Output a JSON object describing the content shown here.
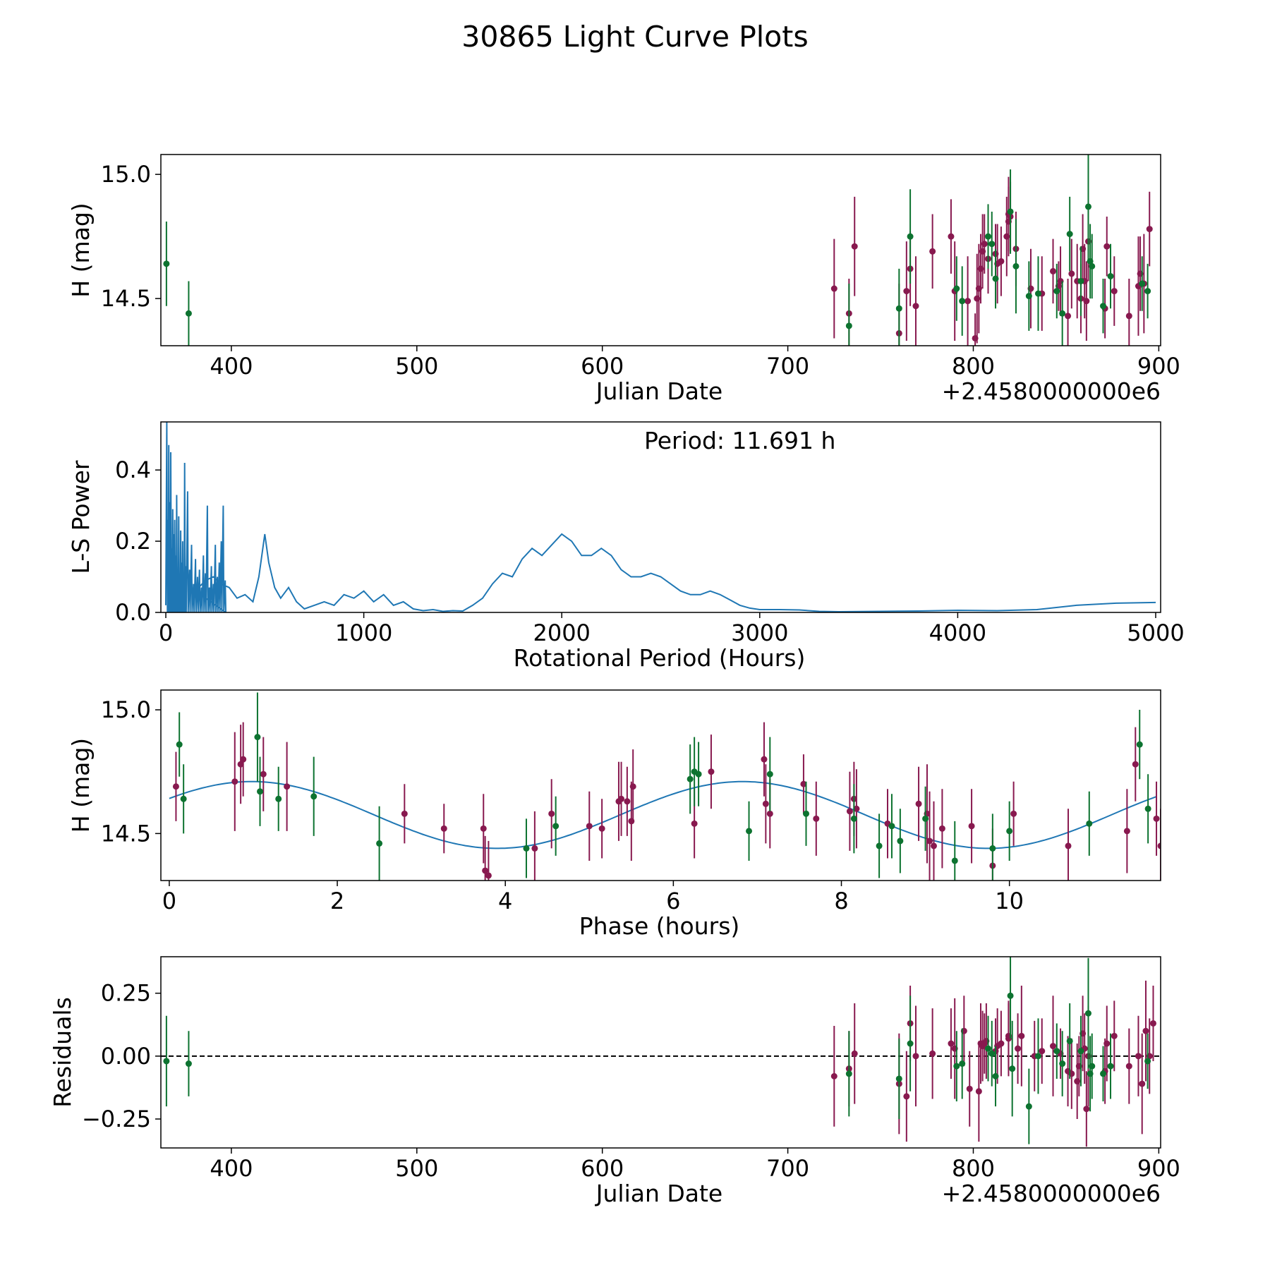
{
  "figure_title": "30865 Light Curve Plots",
  "colors": {
    "filter_a": "#88194F",
    "filter_b": "#0D7330",
    "model": "#1F77B4",
    "zero_line": "#000000"
  },
  "chart_data": [
    {
      "id": "lightcurve",
      "type": "scatter",
      "xlabel": "Julian Date",
      "ylabel": "H (mag)",
      "x_offset_label": "+2.4580000000e6",
      "xlim": [
        362,
        901
      ],
      "ylim": [
        14.31,
        15.08
      ],
      "xticks": [
        400,
        500,
        600,
        700,
        800,
        900
      ],
      "xtick_labels": [
        "400",
        "500",
        "600",
        "700",
        "800",
        "900"
      ],
      "yticks": [
        14.5,
        15.0
      ],
      "ytick_labels": [
        "14.5",
        "15.0"
      ],
      "series": [
        {
          "name": "filter_a",
          "color": "#88194F",
          "x": [
            725,
            733,
            736,
            760,
            764,
            766,
            769,
            778,
            788,
            790,
            797,
            801,
            802,
            803,
            804,
            805,
            806,
            808,
            812,
            813,
            815,
            818,
            819,
            819,
            820,
            823,
            831,
            837,
            843,
            846,
            847,
            851,
            853,
            856,
            858,
            859,
            860,
            861,
            862,
            871,
            872,
            876,
            884,
            889,
            890,
            892,
            895
          ],
          "y": [
            14.54,
            14.44,
            14.71,
            14.36,
            14.53,
            14.62,
            14.47,
            14.69,
            14.75,
            14.53,
            14.49,
            14.34,
            14.5,
            14.54,
            14.62,
            14.69,
            14.72,
            14.66,
            14.68,
            14.64,
            14.65,
            14.75,
            14.81,
            14.84,
            14.83,
            14.7,
            14.54,
            14.52,
            14.61,
            14.55,
            14.57,
            14.43,
            14.6,
            14.57,
            14.5,
            14.7,
            14.57,
            14.49,
            14.73,
            14.46,
            14.71,
            14.53,
            14.43,
            14.55,
            14.6,
            14.56,
            14.78
          ],
          "err": [
            0.2,
            0.14,
            0.2,
            0.2,
            0.2,
            0.15,
            0.2,
            0.15,
            0.15,
            0.2,
            0.18,
            0.1,
            0.18,
            0.18,
            0.14,
            0.15,
            0.12,
            0.14,
            0.12,
            0.16,
            0.14,
            0.16,
            0.14,
            0.15,
            0.14,
            0.15,
            0.16,
            0.15,
            0.13,
            0.1,
            0.14,
            0.15,
            0.14,
            0.15,
            0.14,
            0.14,
            0.15,
            0.16,
            0.16,
            0.12,
            0.12,
            0.14,
            0.15,
            0.2,
            0.15,
            0.2,
            0.15
          ]
        },
        {
          "name": "filter_b",
          "color": "#0D7330",
          "x": [
            365,
            377,
            733,
            760,
            766,
            791,
            794,
            808,
            810,
            812,
            820,
            823,
            830,
            835,
            845,
            848,
            852,
            858,
            862,
            863,
            864,
            870,
            874,
            891,
            894
          ],
          "y": [
            14.64,
            14.44,
            14.39,
            14.46,
            14.75,
            14.54,
            14.49,
            14.75,
            14.72,
            14.58,
            14.85,
            14.63,
            14.51,
            14.52,
            14.53,
            14.44,
            14.76,
            14.57,
            14.87,
            14.65,
            14.63,
            14.47,
            14.59,
            14.56,
            14.53
          ],
          "err": [
            0.17,
            0.13,
            0.17,
            0.16,
            0.19,
            0.13,
            0.14,
            0.13,
            0.13,
            0.12,
            0.17,
            0.19,
            0.14,
            0.15,
            0.11,
            0.13,
            0.15,
            0.14,
            0.22,
            0.15,
            0.13,
            0.11,
            0.13,
            0.11,
            0.11
          ]
        }
      ]
    },
    {
      "id": "periodogram",
      "type": "line",
      "xlabel": "Rotational Period (Hours)",
      "ylabel": "L-S Power",
      "annotation": "Period: 11.691 h",
      "xlim": [
        -25,
        5025
      ],
      "ylim": [
        0,
        0.535
      ],
      "xticks": [
        0,
        1000,
        2000,
        3000,
        4000,
        5000
      ],
      "xtick_labels": [
        "0",
        "1000",
        "2000",
        "3000",
        "4000",
        "5000"
      ],
      "yticks": [
        0.0,
        0.2,
        0.4
      ],
      "ytick_labels": [
        "0.0",
        "0.2",
        "0.4"
      ],
      "smooth_x": [
        150,
        200,
        240,
        280,
        320,
        360,
        400,
        440,
        470,
        500,
        520,
        550,
        580,
        620,
        660,
        700,
        750,
        800,
        850,
        900,
        950,
        1000,
        1050,
        1100,
        1150,
        1200,
        1250,
        1300,
        1350,
        1400,
        1450,
        1500,
        1550,
        1600,
        1650,
        1700,
        1750,
        1800,
        1850,
        1900,
        1950,
        2000,
        2050,
        2100,
        2150,
        2200,
        2250,
        2300,
        2350,
        2400,
        2450,
        2500,
        2550,
        2600,
        2650,
        2700,
        2750,
        2800,
        2850,
        2900,
        2950,
        3000,
        3100,
        3200,
        3300,
        3400,
        3600,
        3800,
        4000,
        4200,
        4400,
        4600,
        4800,
        5000
      ],
      "smooth_y": [
        0.06,
        0.09,
        0.1,
        0.08,
        0.07,
        0.04,
        0.05,
        0.03,
        0.1,
        0.22,
        0.14,
        0.07,
        0.04,
        0.07,
        0.03,
        0.01,
        0.02,
        0.03,
        0.02,
        0.05,
        0.04,
        0.06,
        0.03,
        0.05,
        0.02,
        0.03,
        0.01,
        0.005,
        0.008,
        0.003,
        0.005,
        0.004,
        0.02,
        0.04,
        0.08,
        0.11,
        0.1,
        0.15,
        0.18,
        0.16,
        0.19,
        0.22,
        0.2,
        0.16,
        0.16,
        0.18,
        0.16,
        0.12,
        0.1,
        0.1,
        0.11,
        0.1,
        0.08,
        0.06,
        0.05,
        0.05,
        0.06,
        0.05,
        0.035,
        0.02,
        0.012,
        0.008,
        0.008,
        0.007,
        0.003,
        0.002,
        0.003,
        0.004,
        0.006,
        0.005,
        0.008,
        0.02,
        0.026,
        0.028
      ],
      "spike_x": [
        5,
        10,
        15,
        20,
        25,
        30,
        35,
        40,
        45,
        50,
        55,
        60,
        65,
        70,
        75,
        80,
        85,
        90,
        95,
        100,
        110,
        120,
        130,
        140,
        150,
        160,
        170,
        180,
        190,
        200,
        210,
        220,
        230,
        240,
        250,
        260,
        270,
        280,
        290,
        300
      ],
      "spike_y": [
        0.535,
        0.26,
        0.47,
        0.31,
        0.45,
        0.18,
        0.29,
        0.22,
        0.26,
        0.16,
        0.33,
        0.12,
        0.27,
        0.1,
        0.23,
        0.14,
        0.2,
        0.09,
        0.42,
        0.13,
        0.34,
        0.12,
        0.19,
        0.08,
        0.15,
        0.1,
        0.12,
        0.07,
        0.16,
        0.11,
        0.3,
        0.07,
        0.13,
        0.08,
        0.19,
        0.1,
        0.14,
        0.2,
        0.3,
        0.09
      ]
    },
    {
      "id": "phased",
      "type": "scatter",
      "xlabel": "Phase (hours)",
      "ylabel": "H (mag)",
      "xlim": [
        -0.1,
        11.8
      ],
      "ylim": [
        14.31,
        15.08
      ],
      "xticks": [
        0,
        2,
        4,
        6,
        8,
        10
      ],
      "xtick_labels": [
        "0",
        "2",
        "4",
        "6",
        "8",
        "10"
      ],
      "yticks": [
        14.5,
        15.0
      ],
      "ytick_labels": [
        "14.5",
        "15.0"
      ],
      "model": {
        "mean": 14.575,
        "amplitude": 0.135,
        "period": 5.8455,
        "peak_phase": 0.98
      },
      "series": [
        {
          "name": "filter_a",
          "color": "#88194F",
          "x": [
            0.08,
            0.78,
            0.85,
            0.88,
            1.12,
            1.4,
            2.8,
            3.27,
            3.74,
            3.76,
            3.8,
            4.35,
            4.55,
            5.0,
            5.15,
            5.35,
            5.38,
            5.45,
            5.5,
            5.52,
            6.25,
            6.45,
            7.08,
            7.1,
            7.15,
            7.55,
            7.7,
            8.1,
            8.15,
            8.18,
            8.55,
            8.92,
            9.02,
            9.05,
            9.1,
            9.2,
            9.55,
            9.8,
            10.05,
            10.7,
            11.4,
            11.5,
            11.75,
            11.8
          ],
          "y": [
            14.69,
            14.71,
            14.78,
            14.8,
            14.74,
            14.69,
            14.58,
            14.52,
            14.52,
            14.35,
            14.33,
            14.44,
            14.58,
            14.53,
            14.52,
            14.63,
            14.64,
            14.63,
            14.55,
            14.69,
            14.54,
            14.75,
            14.8,
            14.62,
            14.58,
            14.7,
            14.56,
            14.59,
            14.64,
            14.6,
            14.54,
            14.62,
            14.58,
            14.47,
            14.45,
            14.52,
            14.53,
            14.37,
            14.58,
            14.45,
            14.51,
            14.78,
            14.56,
            14.45
          ],
          "err": [
            0.14,
            0.2,
            0.16,
            0.15,
            0.15,
            0.18,
            0.12,
            0.1,
            0.14,
            0.14,
            0.14,
            0.15,
            0.14,
            0.14,
            0.12,
            0.16,
            0.15,
            0.14,
            0.16,
            0.15,
            0.14,
            0.15,
            0.15,
            0.16,
            0.14,
            0.12,
            0.15,
            0.16,
            0.15,
            0.16,
            0.14,
            0.15,
            0.2,
            0.2,
            0.18,
            0.16,
            0.15,
            0.15,
            0.13,
            0.15,
            0.17,
            0.15,
            0.15,
            0.15
          ]
        },
        {
          "name": "filter_b",
          "color": "#0D7330",
          "x": [
            0.12,
            0.17,
            1.05,
            1.08,
            1.3,
            1.72,
            2.5,
            4.25,
            4.6,
            6.2,
            6.25,
            6.3,
            6.9,
            7.15,
            7.58,
            8.15,
            8.45,
            8.6,
            8.7,
            9.0,
            9.35,
            9.8,
            10.0,
            10.95,
            11.55,
            11.65
          ],
          "y": [
            14.86,
            14.64,
            14.89,
            14.67,
            14.64,
            14.65,
            14.46,
            14.44,
            14.53,
            14.72,
            14.75,
            14.74,
            14.51,
            14.74,
            14.58,
            14.56,
            14.45,
            14.53,
            14.47,
            14.56,
            14.39,
            14.44,
            14.51,
            14.54,
            14.86,
            14.6
          ],
          "err": [
            0.13,
            0.14,
            0.18,
            0.14,
            0.13,
            0.16,
            0.15,
            0.12,
            0.12,
            0.14,
            0.14,
            0.13,
            0.12,
            0.15,
            0.13,
            0.14,
            0.13,
            0.13,
            0.13,
            0.13,
            0.16,
            0.14,
            0.12,
            0.13,
            0.14,
            0.14
          ]
        }
      ]
    },
    {
      "id": "residuals",
      "type": "scatter",
      "xlabel": "Julian Date",
      "ylabel": "Residuals",
      "x_offset_label": "+2.4580000000e6",
      "xlim": [
        362,
        901
      ],
      "ylim": [
        -0.365,
        0.395
      ],
      "xticks": [
        400,
        500,
        600,
        700,
        800,
        900
      ],
      "xtick_labels": [
        "400",
        "500",
        "600",
        "700",
        "800",
        "900"
      ],
      "yticks": [
        -0.25,
        0.0,
        0.25
      ],
      "ytick_labels": [
        "−0.25",
        "0.00",
        "0.25"
      ],
      "zero_line": 0,
      "series": [
        {
          "name": "filter_a",
          "color": "#88194F",
          "x": [
            725,
            733,
            736,
            760,
            764,
            766,
            769,
            778,
            788,
            790,
            795,
            798,
            803,
            804,
            805,
            806,
            807,
            812,
            813,
            815,
            819,
            819,
            824,
            826,
            833,
            837,
            843,
            847,
            851,
            853,
            856,
            857,
            859,
            860,
            861,
            862,
            871,
            872,
            876,
            884,
            889,
            891,
            893,
            895,
            897
          ],
          "y": [
            -0.08,
            -0.05,
            0.01,
            -0.11,
            -0.16,
            0.13,
            0.0,
            0.01,
            0.05,
            0.03,
            0.1,
            -0.13,
            -0.14,
            0.05,
            0.04,
            0.05,
            0.06,
            0.02,
            0.04,
            0.05,
            0.07,
            0.08,
            0.03,
            0.08,
            0.0,
            0.02,
            0.04,
            0.01,
            -0.06,
            -0.07,
            -0.1,
            -0.04,
            0.09,
            0.03,
            -0.21,
            0.0,
            -0.06,
            0.05,
            0.08,
            -0.04,
            0.0,
            -0.11,
            0.1,
            0.0,
            0.13
          ],
          "err": [
            0.2,
            0.15,
            0.2,
            0.2,
            0.18,
            0.15,
            0.2,
            0.18,
            0.14,
            0.2,
            0.14,
            0.15,
            0.2,
            0.16,
            0.14,
            0.12,
            0.15,
            0.13,
            0.15,
            0.13,
            0.15,
            0.13,
            0.14,
            0.2,
            0.14,
            0.13,
            0.2,
            0.1,
            0.14,
            0.14,
            0.15,
            0.12,
            0.15,
            0.14,
            0.15,
            0.2,
            0.13,
            0.15,
            0.14,
            0.15,
            0.16,
            0.2,
            0.2,
            0.15,
            0.15
          ]
        },
        {
          "name": "filter_b",
          "color": "#0D7330",
          "x": [
            365,
            377,
            733,
            760,
            766,
            791,
            794,
            808,
            810,
            812,
            820,
            821,
            830,
            835,
            845,
            848,
            852,
            858,
            862,
            863,
            864,
            870,
            874,
            894
          ],
          "y": [
            -0.02,
            -0.03,
            -0.07,
            -0.09,
            0.05,
            -0.04,
            -0.03,
            0.03,
            0.01,
            -0.08,
            0.24,
            -0.05,
            -0.2,
            -0.0,
            0.02,
            -0.03,
            0.06,
            0.02,
            0.17,
            -0.07,
            -0.04,
            -0.07,
            -0.04,
            -0.02
          ],
          "err": [
            0.18,
            0.13,
            0.17,
            0.16,
            0.19,
            0.14,
            0.14,
            0.13,
            0.13,
            0.12,
            0.17,
            0.19,
            0.15,
            0.15,
            0.11,
            0.13,
            0.15,
            0.14,
            0.22,
            0.15,
            0.13,
            0.11,
            0.13,
            0.11
          ]
        }
      ]
    }
  ]
}
